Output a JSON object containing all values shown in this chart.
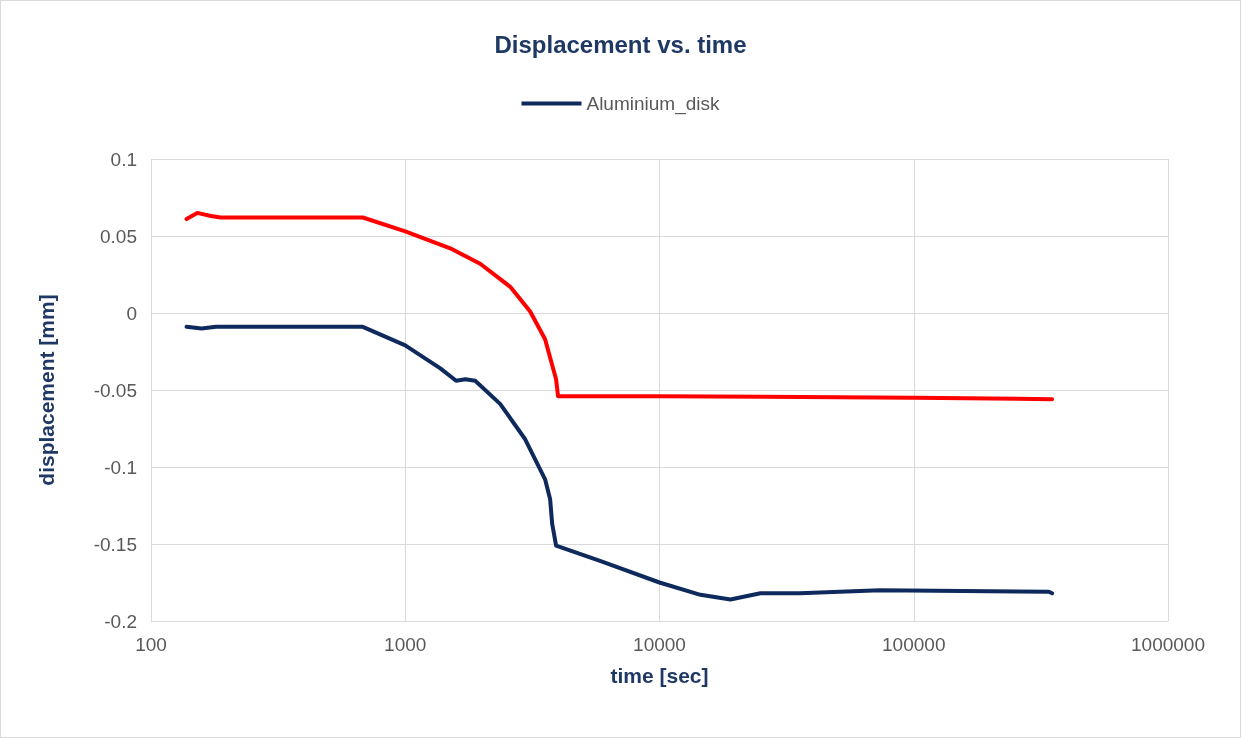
{
  "chart_data": {
    "type": "line",
    "title": "Displacement vs. time",
    "xlabel": "time [sec]",
    "ylabel": "displacement [mm]",
    "log": "x",
    "xlim": [
      100,
      1000000
    ],
    "xticks": [
      100,
      1000,
      10000,
      100000,
      1000000
    ],
    "ylim": [
      -0.2,
      0.1
    ],
    "yticks": [
      -0.2,
      -0.15,
      -0.1,
      -0.05,
      0,
      0.05,
      0.1
    ],
    "grid": true,
    "legend": "top",
    "marker": "none",
    "line_style": "solid",
    "series": [
      {
        "name": "Aluminium_disk",
        "color": "#0e2a5c",
        "x": [
          138,
          158,
          180,
          681,
          1000,
          1374,
          1585,
          1722,
          1884,
          2361,
          2963,
          3548,
          3714,
          3784,
          3920,
          5834,
          10000,
          14490,
          19010,
          24940,
          35650,
          73510,
          340000,
          350000
        ],
        "values": [
          -0.009,
          -0.01,
          -0.009,
          -0.009,
          -0.021,
          -0.036,
          -0.044,
          -0.043,
          -0.044,
          -0.059,
          -0.082,
          -0.108,
          -0.121,
          -0.137,
          -0.151,
          -0.161,
          -0.175,
          -0.183,
          -0.186,
          -0.182,
          -0.182,
          -0.18,
          -0.181,
          -0.182
        ]
      },
      {
        "color": "#ff0000",
        "x": [
          138,
          152,
          172,
          188,
          681,
          1000,
          1503,
          1971,
          2588,
          3100,
          3548,
          3920,
          3990,
          10000,
          100000,
          350000
        ],
        "values": [
          0.061,
          0.065,
          0.063,
          0.062,
          0.062,
          0.053,
          0.042,
          0.032,
          0.017,
          0.001,
          -0.017,
          -0.043,
          -0.054,
          -0.054,
          -0.055,
          -0.056
        ]
      }
    ]
  }
}
